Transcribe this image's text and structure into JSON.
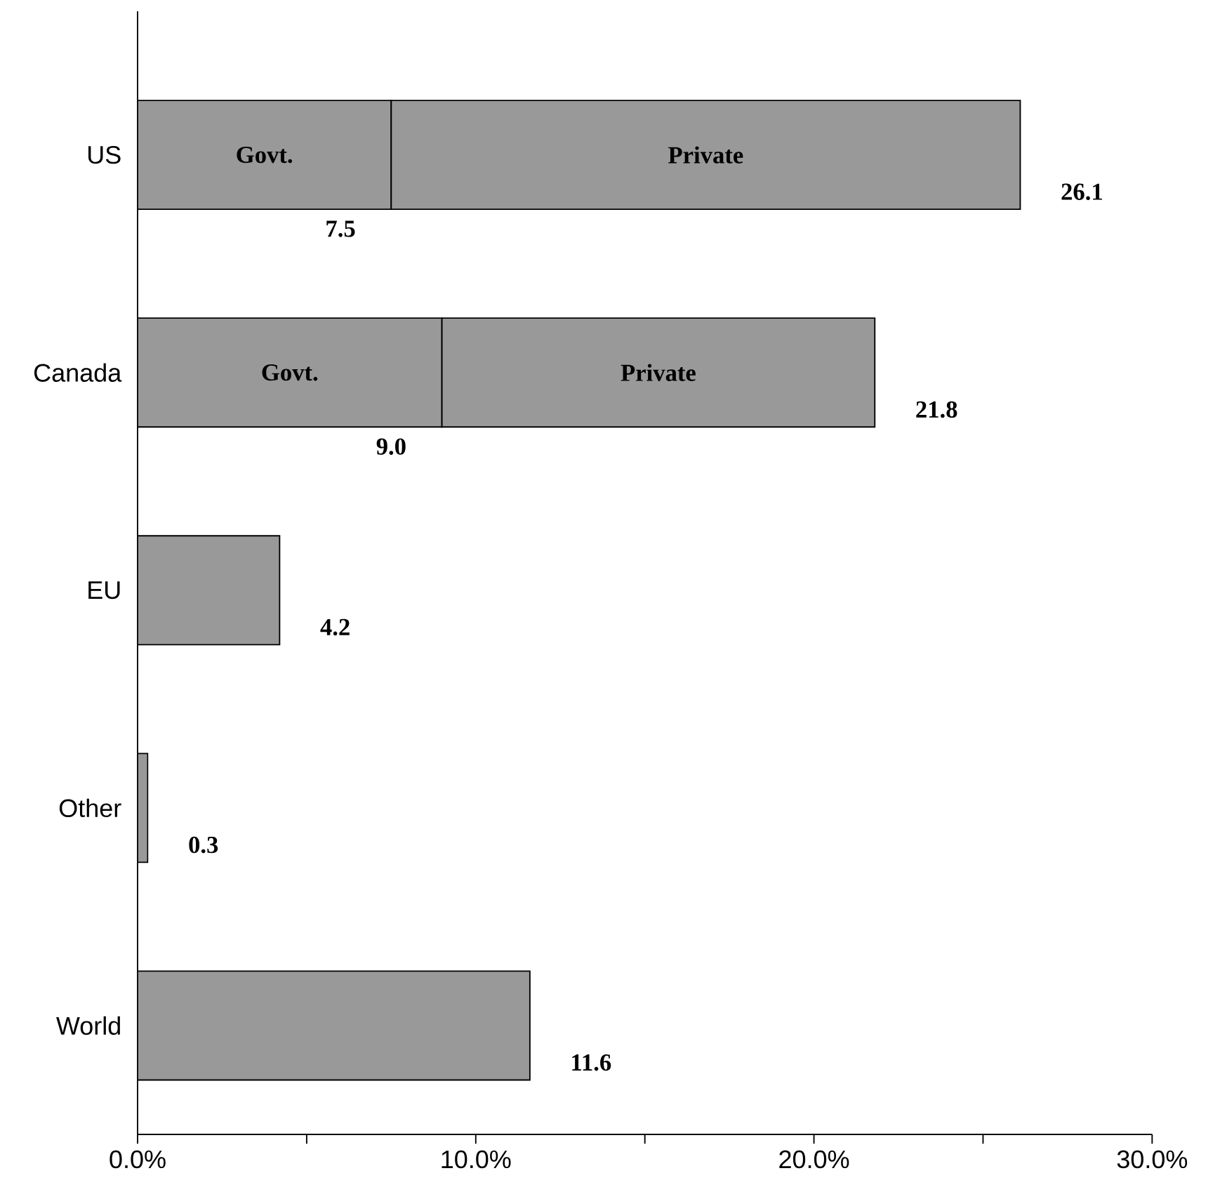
{
  "chart_data": {
    "type": "bar",
    "orientation": "horizontal",
    "stacked": true,
    "categories": [
      "US",
      "Canada",
      "EU",
      "Other",
      "World"
    ],
    "series": [
      {
        "name": "Govt.",
        "color": "#999999",
        "values": [
          7.5,
          9.0,
          null,
          null,
          null
        ],
        "value_labels": [
          "7.5",
          "9.0",
          null,
          null,
          null
        ]
      },
      {
        "name": "Private",
        "color": "#999999",
        "values": [
          18.6,
          12.8,
          null,
          null,
          null
        ]
      },
      {
        "color": "#999999",
        "values": [
          null,
          null,
          4.2,
          0.3,
          11.6
        ]
      }
    ],
    "totals": [
      "26.1",
      "21.8",
      "4.2",
      "0.3",
      "11.6"
    ],
    "xlim": [
      0,
      30
    ],
    "xticks": [
      {
        "value": 0,
        "label": "0.0%"
      },
      {
        "value": 5,
        "label": null
      },
      {
        "value": 10,
        "label": "10.0%"
      },
      {
        "value": 15,
        "label": null
      },
      {
        "value": 20,
        "label": "20.0%"
      },
      {
        "value": 25,
        "label": null
      },
      {
        "value": 30,
        "label": "30.0%"
      }
    ],
    "grid": false
  }
}
